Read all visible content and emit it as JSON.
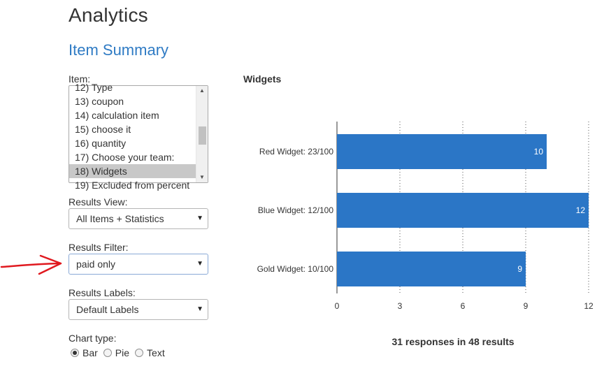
{
  "page": {
    "title": "Analytics",
    "section_title": "Item Summary"
  },
  "item_picker": {
    "label": "Item:",
    "options": [
      "12) Type",
      "13) coupon",
      "14) calculation item",
      "15) choose it",
      "16) quantity",
      "17) Choose your team:",
      "18) Widgets",
      "19) Excluded from percent"
    ],
    "selected": "18) Widgets"
  },
  "results_view": {
    "label": "Results View:",
    "value": "All Items + Statistics"
  },
  "results_filter": {
    "label": "Results Filter:",
    "value": "paid only"
  },
  "results_labels": {
    "label": "Results Labels:",
    "value": "Default Labels"
  },
  "chart_type": {
    "label": "Chart type:",
    "options": [
      "Bar",
      "Pie",
      "Text"
    ],
    "selected": "Bar"
  },
  "annotation": {
    "arrow_color": "#e0191f"
  },
  "colors": {
    "accent": "#2f7bc4",
    "bar": "#2b76c6"
  },
  "summary": "31 responses in 48 results",
  "chart_data": {
    "type": "bar",
    "orientation": "horizontal",
    "title": "Widgets",
    "categories": [
      "Red Widget: 23/100",
      "Blue Widget: 12/100",
      "Gold Widget: 10/100"
    ],
    "values": [
      10,
      12,
      9
    ],
    "data_labels": [
      "10",
      "12",
      "9"
    ],
    "xlim": [
      0,
      12
    ],
    "xticks": [
      0,
      3,
      6,
      9,
      12
    ],
    "grid": "vertical dotted",
    "legend": "none"
  }
}
